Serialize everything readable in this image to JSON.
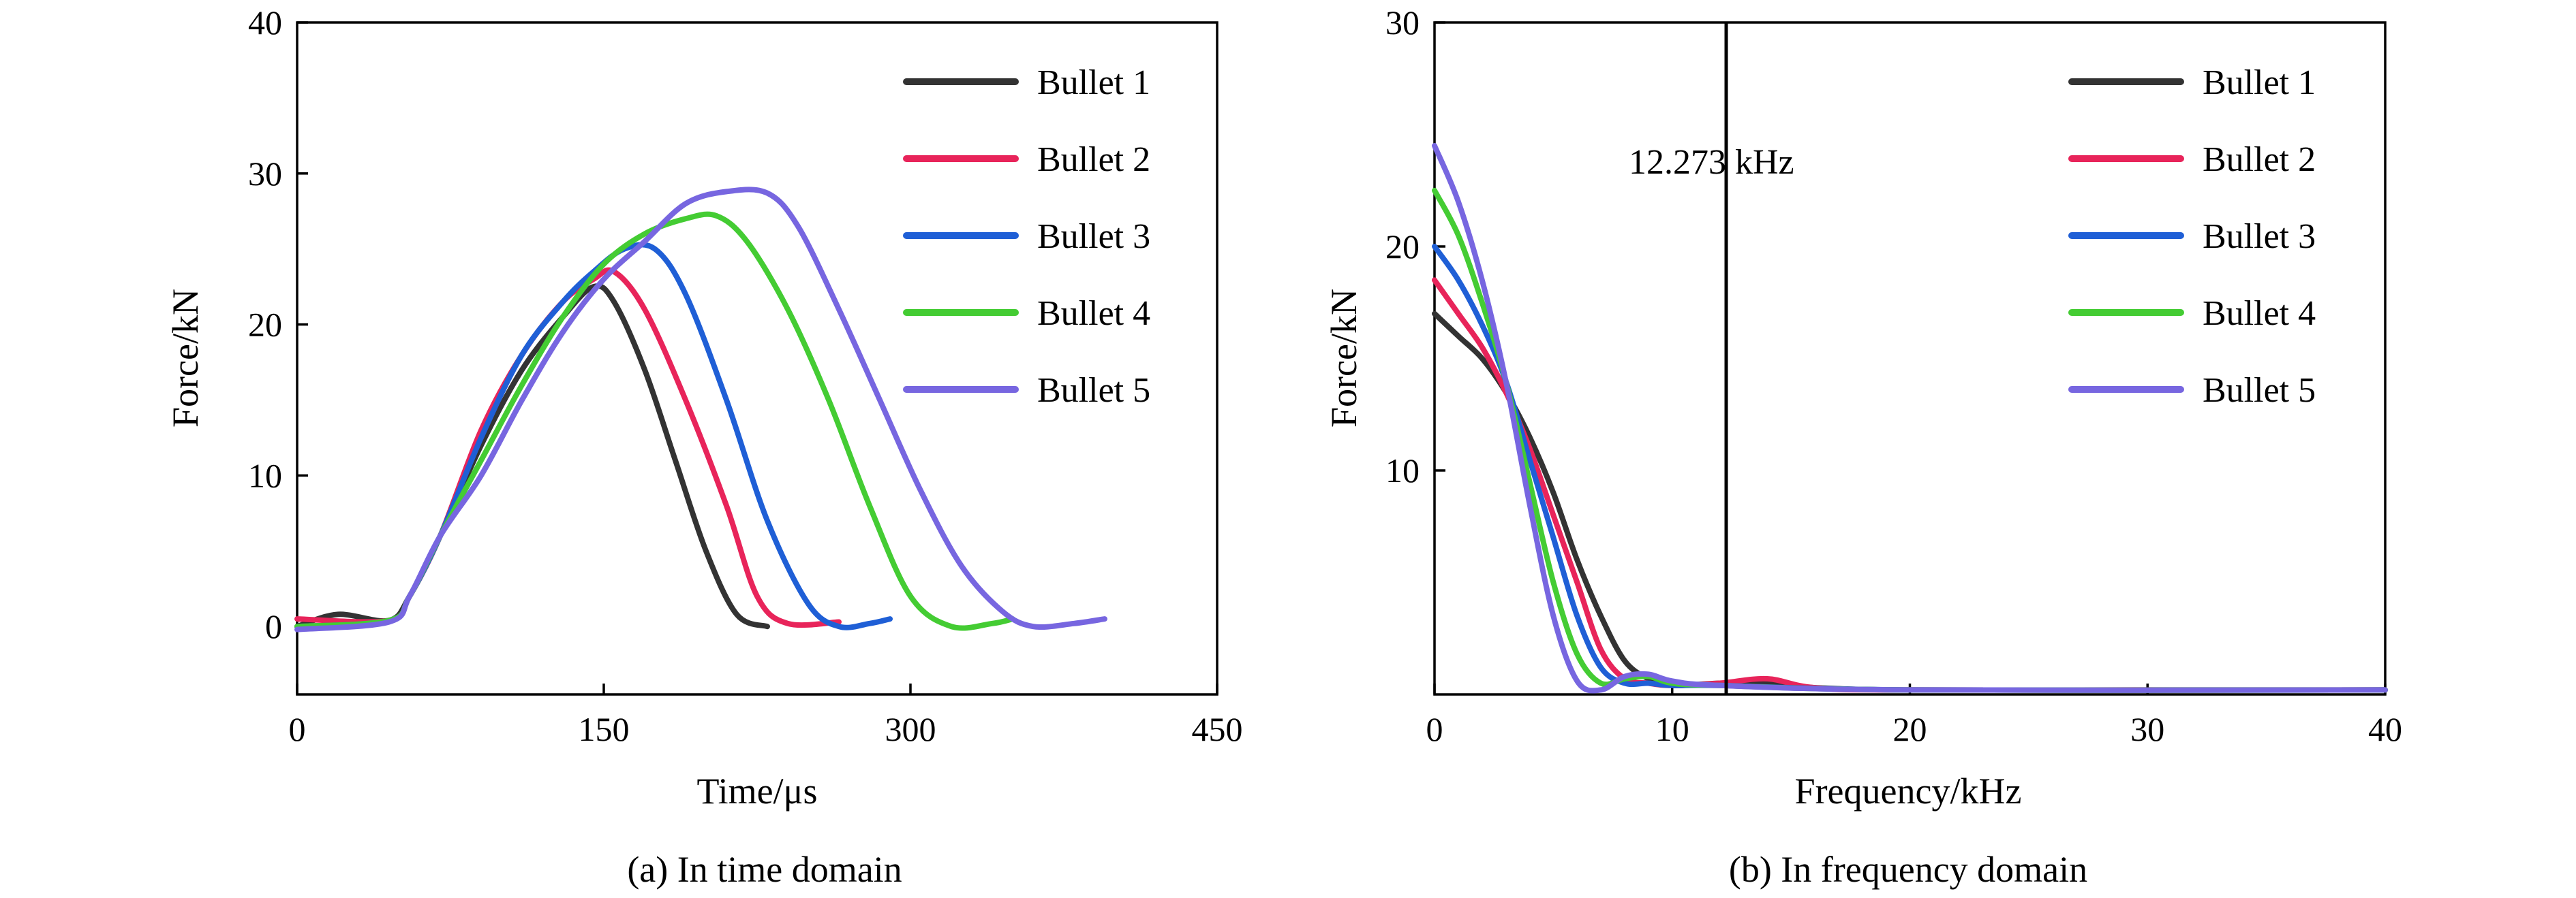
{
  "chart_data": [
    {
      "type": "line",
      "caption": "(a) In time domain",
      "xlabel": "Time/μs",
      "ylabel": "Force/kN",
      "xlim": [
        0,
        450
      ],
      "ylim": [
        -4.5,
        40
      ],
      "xticks": [
        0,
        150,
        300,
        450
      ],
      "yticks": [
        0,
        10,
        20,
        30,
        40
      ],
      "legend_position": "top-right",
      "series": [
        {
          "name": "Bullet 1",
          "color": "#333333",
          "points": [
            [
              0,
              0
            ],
            [
              20,
              0.8
            ],
            [
              45,
              0.4
            ],
            [
              55,
              2
            ],
            [
              70,
              6
            ],
            [
              90,
              12
            ],
            [
              110,
              17
            ],
            [
              130,
              20.5
            ],
            [
              145,
              22.5
            ],
            [
              155,
              21.5
            ],
            [
              170,
              17
            ],
            [
              185,
              11
            ],
            [
              200,
              5
            ],
            [
              215,
              0.8
            ],
            [
              230,
              0
            ]
          ]
        },
        {
          "name": "Bullet 2",
          "color": "#e8245a",
          "points": [
            [
              0,
              0.5
            ],
            [
              45,
              0.4
            ],
            [
              55,
              2
            ],
            [
              70,
              6
            ],
            [
              90,
              13
            ],
            [
              110,
              18
            ],
            [
              130,
              21.5
            ],
            [
              145,
              23
            ],
            [
              155,
              23.5
            ],
            [
              170,
              21
            ],
            [
              190,
              15
            ],
            [
              210,
              8
            ],
            [
              225,
              2
            ],
            [
              240,
              0.2
            ],
            [
              265,
              0.3
            ]
          ]
        },
        {
          "name": "Bullet 3",
          "color": "#1f5fd6",
          "points": [
            [
              0,
              0
            ],
            [
              45,
              0.4
            ],
            [
              55,
              2
            ],
            [
              70,
              6
            ],
            [
              90,
              12.5
            ],
            [
              110,
              18
            ],
            [
              130,
              21.5
            ],
            [
              145,
              23.5
            ],
            [
              160,
              25
            ],
            [
              175,
              25
            ],
            [
              190,
              22
            ],
            [
              210,
              15
            ],
            [
              230,
              7
            ],
            [
              250,
              1.5
            ],
            [
              265,
              0
            ],
            [
              280,
              0.2
            ],
            [
              290,
              0.5
            ]
          ]
        },
        {
          "name": "Bullet 4",
          "color": "#44cc33",
          "points": [
            [
              0,
              0
            ],
            [
              45,
              0.4
            ],
            [
              55,
              2
            ],
            [
              70,
              6
            ],
            [
              90,
              11
            ],
            [
              110,
              16
            ],
            [
              130,
              20.5
            ],
            [
              150,
              24
            ],
            [
              170,
              26
            ],
            [
              190,
              27
            ],
            [
              205,
              27.2
            ],
            [
              220,
              25.5
            ],
            [
              240,
              21
            ],
            [
              260,
              15
            ],
            [
              280,
              8
            ],
            [
              300,
              2
            ],
            [
              320,
              0
            ],
            [
              340,
              0.2
            ],
            [
              350,
              0.5
            ]
          ]
        },
        {
          "name": "Bullet 5",
          "color": "#7766e0",
          "points": [
            [
              0,
              -0.2
            ],
            [
              45,
              0.3
            ],
            [
              55,
              2
            ],
            [
              70,
              6
            ],
            [
              90,
              10
            ],
            [
              110,
              15
            ],
            [
              130,
              19.5
            ],
            [
              150,
              23
            ],
            [
              170,
              25.5
            ],
            [
              190,
              28
            ],
            [
              210,
              28.8
            ],
            [
              230,
              28.7
            ],
            [
              245,
              26.5
            ],
            [
              265,
              21
            ],
            [
              285,
              15
            ],
            [
              305,
              9
            ],
            [
              325,
              4
            ],
            [
              345,
              1
            ],
            [
              360,
              0
            ],
            [
              380,
              0.2
            ],
            [
              395,
              0.5
            ]
          ]
        }
      ]
    },
    {
      "type": "line",
      "caption": "(b) In frequency domain",
      "xlabel": "Frequency/kHz",
      "ylabel": "Force/kN",
      "xlim": [
        0,
        40
      ],
      "ylim": [
        0,
        30
      ],
      "xticks": [
        0,
        10,
        20,
        30,
        40
      ],
      "yticks": [
        10,
        20,
        30
      ],
      "legend_position": "top-right",
      "annotation": {
        "text": "12.273 kHz",
        "x": 12.273
      },
      "series": [
        {
          "name": "Bullet 1",
          "color": "#333333",
          "points": [
            [
              0,
              17
            ],
            [
              1,
              16
            ],
            [
              2,
              15
            ],
            [
              3,
              13.5
            ],
            [
              4,
              11.5
            ],
            [
              5,
              9
            ],
            [
              6,
              6
            ],
            [
              7,
              3.5
            ],
            [
              8,
              1.5
            ],
            [
              9,
              0.7
            ],
            [
              10,
              0.4
            ],
            [
              12,
              0.5
            ],
            [
              14,
              0.5
            ],
            [
              16,
              0.3
            ],
            [
              20,
              0.2
            ],
            [
              30,
              0.2
            ],
            [
              40,
              0.2
            ]
          ]
        },
        {
          "name": "Bullet 2",
          "color": "#e8245a",
          "points": [
            [
              0,
              18.5
            ],
            [
              1,
              17
            ],
            [
              2,
              15.5
            ],
            [
              3,
              13.5
            ],
            [
              4,
              11
            ],
            [
              5,
              8
            ],
            [
              6,
              5
            ],
            [
              7,
              2
            ],
            [
              8,
              0.7
            ],
            [
              9,
              0.5
            ],
            [
              10,
              0.4
            ],
            [
              12,
              0.5
            ],
            [
              14,
              0.7
            ],
            [
              16,
              0.3
            ],
            [
              20,
              0.2
            ],
            [
              40,
              0.2
            ]
          ]
        },
        {
          "name": "Bullet 3",
          "color": "#1f5fd6",
          "points": [
            [
              0,
              20
            ],
            [
              1,
              18.5
            ],
            [
              2,
              16.5
            ],
            [
              3,
              14
            ],
            [
              4,
              10.5
            ],
            [
              5,
              7
            ],
            [
              6,
              3.5
            ],
            [
              7,
              1.2
            ],
            [
              8,
              0.5
            ],
            [
              9,
              0.5
            ],
            [
              10,
              0.4
            ],
            [
              12,
              0.4
            ],
            [
              20,
              0.2
            ],
            [
              40,
              0.2
            ]
          ]
        },
        {
          "name": "Bullet 4",
          "color": "#44cc33",
          "points": [
            [
              0,
              22.5
            ],
            [
              1,
              20.5
            ],
            [
              2,
              17.5
            ],
            [
              3,
              14
            ],
            [
              4,
              9.5
            ],
            [
              5,
              5
            ],
            [
              6,
              1.8
            ],
            [
              7,
              0.5
            ],
            [
              8,
              0.7
            ],
            [
              9,
              0.8
            ],
            [
              10,
              0.5
            ],
            [
              12,
              0.4
            ],
            [
              20,
              0.2
            ],
            [
              40,
              0.2
            ]
          ]
        },
        {
          "name": "Bullet 5",
          "color": "#7766e0",
          "points": [
            [
              0,
              24.5
            ],
            [
              1,
              22
            ],
            [
              2,
              18.5
            ],
            [
              3,
              14
            ],
            [
              4,
              8.5
            ],
            [
              5,
              3.5
            ],
            [
              6,
              0.6
            ],
            [
              7,
              0.2
            ],
            [
              8,
              0.8
            ],
            [
              9,
              0.9
            ],
            [
              10,
              0.6
            ],
            [
              12,
              0.4
            ],
            [
              20,
              0.2
            ],
            [
              40,
              0.2
            ]
          ]
        }
      ]
    }
  ]
}
